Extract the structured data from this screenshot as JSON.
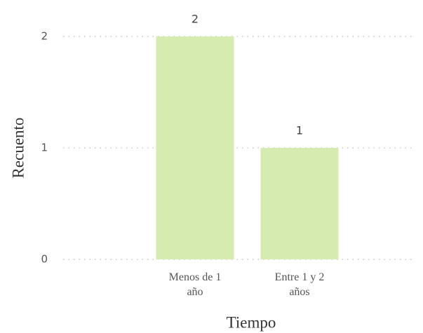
{
  "chart_data": {
    "type": "bar",
    "categories": [
      "Menos de 1 año",
      "Entre 1 y 2 años"
    ],
    "values": [
      2,
      1
    ],
    "color": "#d5ebb0",
    "ylim": [
      0,
      2
    ],
    "yticks": [
      0,
      1,
      2
    ],
    "grid": true,
    "xlabel": "Tiempo",
    "ylabel": "Recuento"
  }
}
